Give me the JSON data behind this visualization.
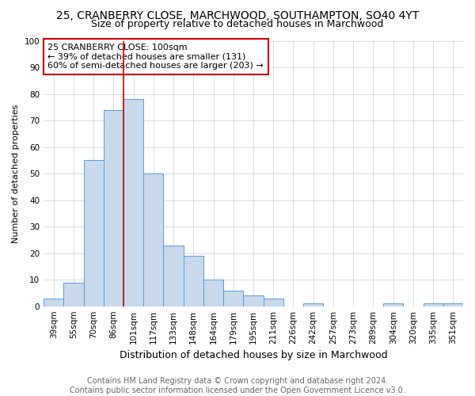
{
  "title": "25, CRANBERRY CLOSE, MARCHWOOD, SOUTHAMPTON, SO40 4YT",
  "subtitle": "Size of property relative to detached houses in Marchwood",
  "xlabel": "Distribution of detached houses by size in Marchwood",
  "ylabel": "Number of detached properties",
  "footer1": "Contains HM Land Registry data © Crown copyright and database right 2024.",
  "footer2": "Contains public sector information licensed under the Open Government Licence v3.0.",
  "bin_labels": [
    "39sqm",
    "55sqm",
    "70sqm",
    "86sqm",
    "101sqm",
    "117sqm",
    "133sqm",
    "148sqm",
    "164sqm",
    "179sqm",
    "195sqm",
    "211sqm",
    "226sqm",
    "242sqm",
    "257sqm",
    "273sqm",
    "289sqm",
    "304sqm",
    "320sqm",
    "335sqm",
    "351sqm"
  ],
  "bin_values": [
    3,
    9,
    55,
    74,
    78,
    50,
    23,
    19,
    10,
    6,
    4,
    3,
    0,
    1,
    0,
    0,
    0,
    1,
    0,
    1,
    1
  ],
  "bar_color": "#c8d9eb",
  "bar_edge_color": "#5b9bd5",
  "vline_index": 4,
  "vline_color": "#cc0000",
  "annotation_text": "25 CRANBERRY CLOSE: 100sqm\n← 39% of detached houses are smaller (131)\n60% of semi-detached houses are larger (203) →",
  "annotation_box_color": "white",
  "annotation_box_edge_color": "#cc0000",
  "ylim": [
    0,
    100
  ],
  "yticks": [
    0,
    10,
    20,
    30,
    40,
    50,
    60,
    70,
    80,
    90,
    100
  ],
  "grid_color": "#c8d0d8",
  "background_color": "white",
  "title_fontsize": 10,
  "subtitle_fontsize": 9,
  "xlabel_fontsize": 9,
  "ylabel_fontsize": 8,
  "tick_fontsize": 7.5,
  "annotation_fontsize": 8,
  "footer_fontsize": 7
}
